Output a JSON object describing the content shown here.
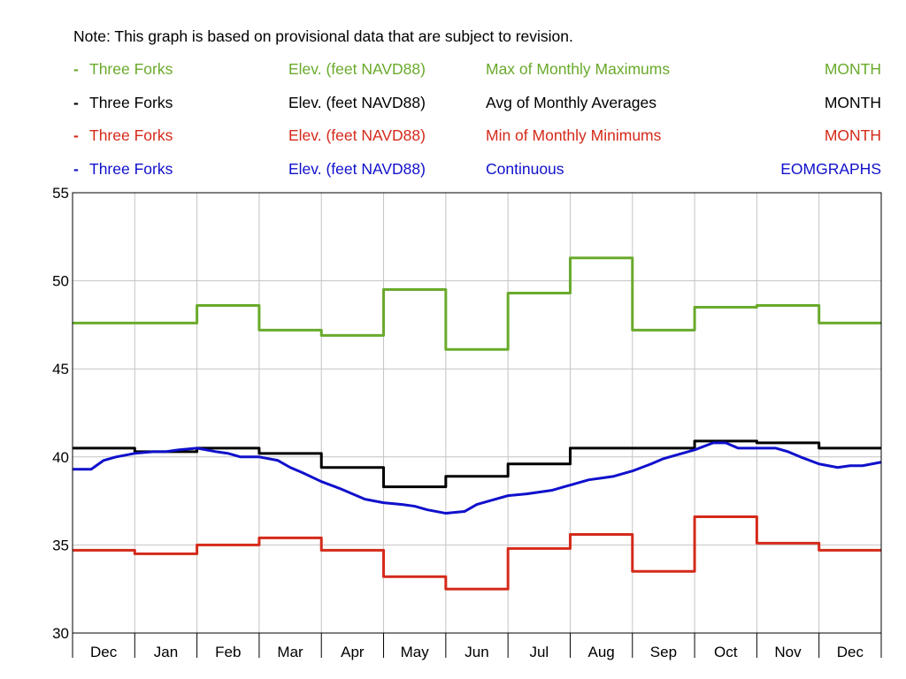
{
  "note": "Note: This graph is based on provisional data that are subject to revision.",
  "legend": [
    {
      "marker": "-",
      "site": "Three Forks",
      "parameter": "Elev. (feet NAVD88)",
      "statistic": "Max of Monthly Maximums",
      "period": "MONTH",
      "color": "#6aaa2c"
    },
    {
      "marker": "-",
      "site": "Three Forks",
      "parameter": "Elev. (feet NAVD88)",
      "statistic": "Avg of Monthly Averages",
      "period": "MONTH",
      "color": "#000000"
    },
    {
      "marker": "-",
      "site": "Three Forks",
      "parameter": "Elev. (feet NAVD88)",
      "statistic": "Min of Monthly Minimums",
      "period": "MONTH",
      "color": "#d42a1a"
    },
    {
      "marker": "-",
      "site": "Three Forks",
      "parameter": "Elev. (feet NAVD88)",
      "statistic": "Continuous",
      "period": "EOMGRAPHS",
      "color": "#1010cc"
    }
  ],
  "chart_data": {
    "type": "line",
    "categories": [
      "Dec",
      "Jan",
      "Feb",
      "Mar",
      "Apr",
      "May",
      "Jun",
      "Jul",
      "Aug",
      "Sep",
      "Oct",
      "Nov",
      "Dec"
    ],
    "ylim": [
      30,
      55
    ],
    "yticks": [
      30,
      35,
      40,
      45,
      50,
      55
    ],
    "grid": true,
    "series": [
      {
        "name": "Max of Monthly Maximums",
        "color": "#6aaa2c",
        "step": true,
        "values": [
          47.6,
          47.6,
          48.6,
          47.2,
          46.9,
          49.5,
          46.1,
          49.3,
          51.3,
          47.2,
          48.5,
          48.6,
          47.6
        ]
      },
      {
        "name": "Avg of Monthly Averages",
        "color": "#000000",
        "step": true,
        "values": [
          40.5,
          40.3,
          40.5,
          40.2,
          39.4,
          38.3,
          38.9,
          39.6,
          40.5,
          40.5,
          40.9,
          40.8,
          40.5
        ]
      },
      {
        "name": "Min of Monthly Minimums",
        "color": "#d42a1a",
        "step": true,
        "values": [
          34.7,
          34.5,
          35.0,
          35.4,
          34.7,
          33.2,
          32.5,
          34.8,
          35.6,
          33.5,
          36.6,
          35.1,
          34.7
        ]
      },
      {
        "name": "Continuous",
        "color": "#1010cc",
        "step": false,
        "x": [
          0,
          0.3,
          0.5,
          0.7,
          1.0,
          1.3,
          1.5,
          1.7,
          2.0,
          2.3,
          2.5,
          2.7,
          3.0,
          3.3,
          3.5,
          3.7,
          4.0,
          4.3,
          4.5,
          4.7,
          5.0,
          5.3,
          5.5,
          5.7,
          6.0,
          6.3,
          6.5,
          6.7,
          7.0,
          7.3,
          7.5,
          7.7,
          8.0,
          8.3,
          8.5,
          8.7,
          9.0,
          9.3,
          9.5,
          9.7,
          10.0,
          10.3,
          10.5,
          10.7,
          11.0,
          11.3,
          11.5,
          11.7,
          12.0,
          12.3,
          12.5,
          12.7,
          13.0
        ],
        "values": [
          39.3,
          39.3,
          39.8,
          40.0,
          40.2,
          40.3,
          40.3,
          40.4,
          40.5,
          40.3,
          40.2,
          40.0,
          40.0,
          39.8,
          39.4,
          39.1,
          38.6,
          38.2,
          37.9,
          37.6,
          37.4,
          37.3,
          37.2,
          37.0,
          36.8,
          36.9,
          37.3,
          37.5,
          37.8,
          37.9,
          38.0,
          38.1,
          38.4,
          38.7,
          38.8,
          38.9,
          39.2,
          39.6,
          39.9,
          40.1,
          40.4,
          40.8,
          40.8,
          40.5,
          40.5,
          40.5,
          40.3,
          40.0,
          39.6,
          39.4,
          39.5,
          39.5,
          39.7
        ]
      }
    ]
  }
}
